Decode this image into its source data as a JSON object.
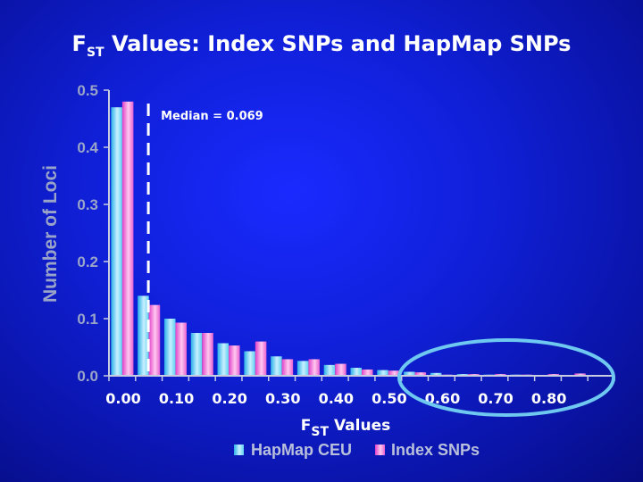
{
  "title": {
    "main": "F",
    "sub": "ST",
    "rest": " Values: Index SNPs and HapMap SNPs"
  },
  "colors": {
    "ceu": "#5fd0f0",
    "index": "#e040c8",
    "axis": "#c8cce0",
    "median": "#ffffff",
    "ellipse": "#6ec8f0"
  },
  "chart_data": {
    "type": "bar",
    "categories": [
      "0.00",
      "0.05",
      "0.10",
      "0.15",
      "0.20",
      "0.25",
      "0.30",
      "0.35",
      "0.40",
      "0.45",
      "0.50",
      "0.55",
      "0.60",
      "0.65",
      "0.70",
      "0.75",
      "0.80",
      "0.85",
      "0.90"
    ],
    "series": [
      {
        "name": "HapMap CEU",
        "values": [
          0.47,
          0.14,
          0.1,
          0.075,
          0.057,
          0.043,
          0.034,
          0.026,
          0.019,
          0.014,
          0.01,
          0.007,
          0.005,
          0.003,
          0.002,
          0.002,
          0.001,
          0.001,
          0.001
        ]
      },
      {
        "name": "Index SNPs",
        "values": [
          0.48,
          0.124,
          0.093,
          0.075,
          0.053,
          0.06,
          0.029,
          0.029,
          0.021,
          0.011,
          0.009,
          0.006,
          0.002,
          0.003,
          0.003,
          0.002,
          0.003,
          0.004,
          0.001
        ]
      }
    ],
    "ylim": [
      0,
      0.5
    ],
    "yticks": [
      "0.0",
      "0.1",
      "0.2",
      "0.3",
      "0.4",
      "0.5"
    ],
    "xtick_labels": [
      "0.00",
      "0.10",
      "0.20",
      "0.30",
      "0.40",
      "0.50",
      "0.60",
      "0.70",
      "0.80"
    ],
    "ylabel": "Number of Loci",
    "xlabel": {
      "main": "F",
      "sub": "ST",
      "rest": " Values"
    },
    "median": {
      "value": 0.069,
      "label": "Median = 0.069"
    },
    "legend_position": "bottom-center"
  }
}
